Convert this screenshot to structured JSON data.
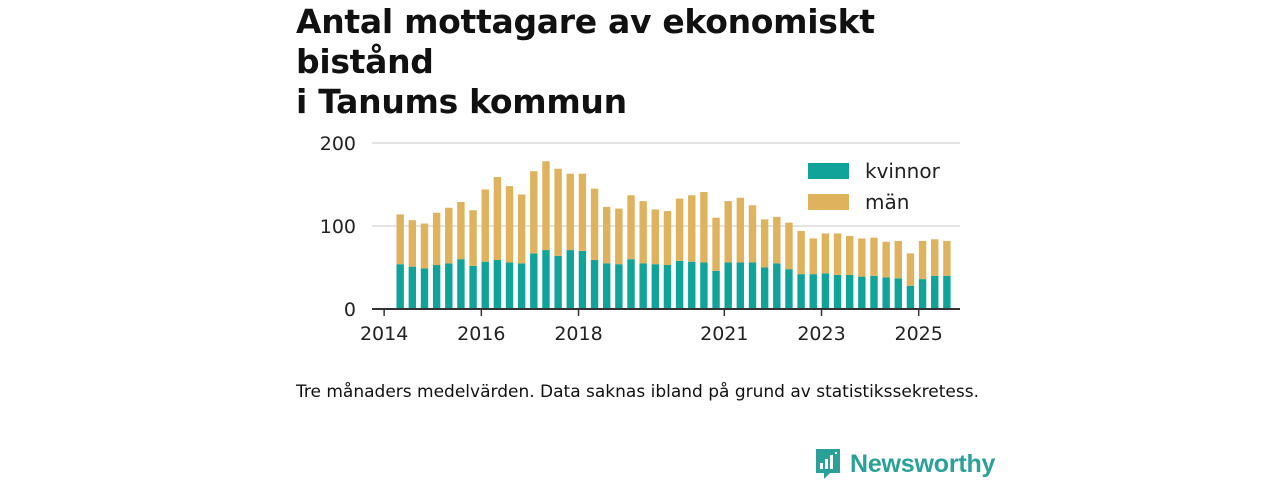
{
  "title_lines": [
    "Antal mottagare av ekonomiskt bistånd",
    "i Tanums kommun"
  ],
  "caption": "Tre månaders medelvärden. Data saknas ibland på grund av statistikssekretess.",
  "brand": "Newsworthy",
  "colors": {
    "kvinnor": "#0fa39a",
    "man": "#dfb25e",
    "grid": "#dcdcdc",
    "axis": "#333333",
    "brand": "#2aa198"
  },
  "chart_data": {
    "type": "bar",
    "stacked": true,
    "title": "Antal mottagare av ekonomiskt bistånd i Tanums kommun",
    "xlabel": "",
    "ylabel": "",
    "ylim": [
      0,
      200
    ],
    "yticks": [
      "0",
      "100",
      "200"
    ],
    "xticks": [
      {
        "label": "2014",
        "x": 2014.0
      },
      {
        "label": "2016",
        "x": 2016.0
      },
      {
        "label": "2018",
        "x": 2018.0
      },
      {
        "label": "2021",
        "x": 2021.0
      },
      {
        "label": "2023",
        "x": 2023.0
      },
      {
        "label": "2025",
        "x": 2025.0
      }
    ],
    "xlim": [
      2013.75,
      2025.85
    ],
    "legend": {
      "position": "top-right",
      "entries": [
        "kvinnor",
        "män"
      ]
    },
    "x": [
      2014.33,
      2014.58,
      2014.83,
      2015.08,
      2015.33,
      2015.58,
      2015.83,
      2016.08,
      2016.33,
      2016.58,
      2016.83,
      2017.08,
      2017.33,
      2017.58,
      2017.83,
      2018.08,
      2018.33,
      2018.58,
      2018.83,
      2019.08,
      2019.33,
      2019.58,
      2019.83,
      2020.08,
      2020.33,
      2020.58,
      2020.83,
      2021.08,
      2021.33,
      2021.58,
      2021.83,
      2022.08,
      2022.33,
      2022.58,
      2022.83,
      2023.08,
      2023.33,
      2023.58,
      2023.83,
      2024.08,
      2024.33,
      2024.58,
      2024.83,
      2025.08,
      2025.33,
      2025.58
    ],
    "series": [
      {
        "name": "kvinnor",
        "values": [
          54,
          51,
          49,
          53,
          55,
          60,
          52,
          57,
          59,
          56,
          55,
          67,
          71,
          64,
          71,
          70,
          59,
          55,
          54,
          60,
          55,
          54,
          53,
          58,
          57,
          56,
          46,
          56,
          56,
          56,
          50,
          55,
          48,
          42,
          42,
          43,
          41,
          41,
          39,
          40,
          38,
          37,
          28,
          36,
          40,
          40
        ]
      },
      {
        "name": "män",
        "values": [
          60,
          56,
          54,
          63,
          67,
          69,
          67,
          87,
          100,
          92,
          83,
          99,
          107,
          105,
          92,
          93,
          86,
          68,
          67,
          77,
          75,
          66,
          65,
          75,
          80,
          85,
          64,
          74,
          78,
          69,
          58,
          56,
          56,
          52,
          43,
          48,
          50,
          47,
          46,
          46,
          43,
          45,
          39,
          46,
          44,
          42
        ]
      }
    ]
  }
}
